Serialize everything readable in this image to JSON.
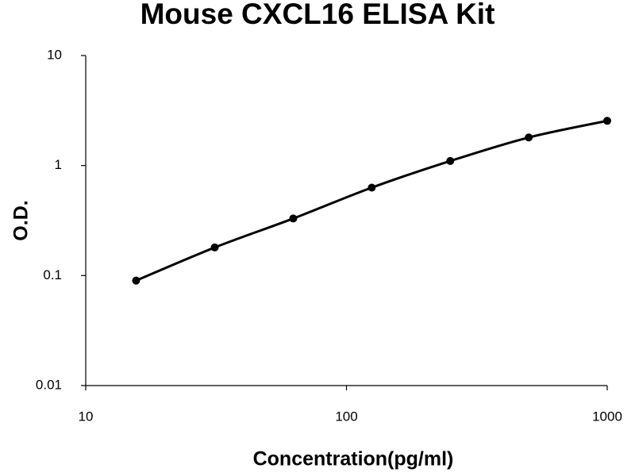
{
  "chart_data": {
    "type": "line",
    "title": "Mouse CXCL16 ELISA Kit",
    "x_label": "Concentration(pg/ml)",
    "y_label": "O.D.",
    "x_log": true,
    "y_log": true,
    "grid": false,
    "series": [
      {
        "color": "#000000",
        "x": [
          15.6,
          31.25,
          62.5,
          125,
          250,
          500,
          1000
        ],
        "values": [
          0.09,
          0.18,
          0.33,
          0.63,
          1.1,
          1.8,
          2.55
        ]
      }
    ],
    "xlim": [
      10,
      1000
    ],
    "xticks": [
      10,
      100,
      1000
    ],
    "ylim": [
      0.01,
      10
    ],
    "yticks": [
      0.01,
      0.1,
      1,
      10
    ]
  }
}
